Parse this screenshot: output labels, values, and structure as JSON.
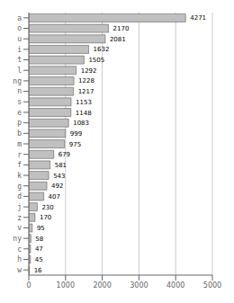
{
  "chart_data": {
    "type": "bar",
    "orientation": "horizontal",
    "categories": [
      "a",
      "o",
      "u",
      "i",
      "t",
      "l",
      "ng",
      "n",
      "s",
      "e",
      "p",
      "b",
      "m",
      "r",
      "f",
      "k",
      "g",
      "d",
      "j",
      "z",
      "v",
      "ny",
      "c",
      "h",
      "w"
    ],
    "values": [
      4271,
      2170,
      2081,
      1632,
      1505,
      1292,
      1228,
      1217,
      1153,
      1148,
      1083,
      999,
      975,
      679,
      581,
      543,
      492,
      407,
      230,
      170,
      95,
      58,
      47,
      45,
      16
    ],
    "color": "#c0c0c0",
    "xlim": [
      0,
      5000
    ],
    "xticks": [
      0,
      1000,
      2000,
      3000,
      4000,
      5000
    ],
    "grid": true,
    "data_labels": true
  }
}
